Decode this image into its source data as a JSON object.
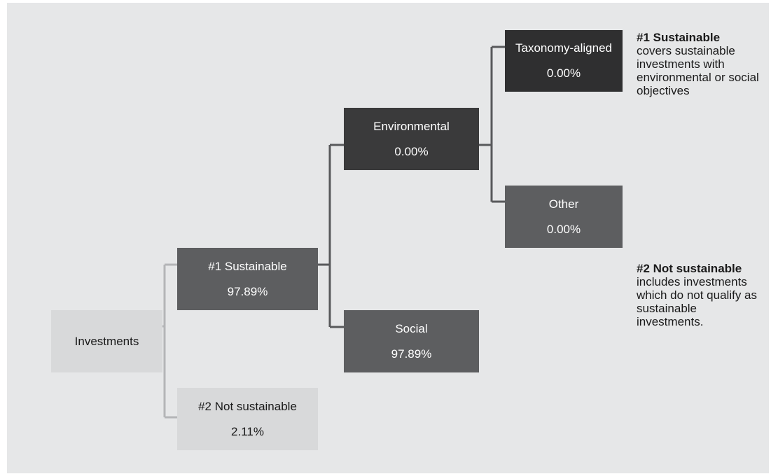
{
  "colors": {
    "panel_background": "#e6e7e8",
    "box_dark": "#3a3a3b",
    "box_medium": "#5d5e60",
    "box_light": "#d8d9da",
    "connector_light": "#b4b5b7",
    "connector_dark": "#58595b"
  },
  "nodes": {
    "investments": {
      "label": "Investments"
    },
    "sustainable": {
      "label": "#1 Sustainable",
      "value": "97.89%"
    },
    "not_sustainable": {
      "label": "#2 Not sustainable",
      "value": "2.11%"
    },
    "environmental": {
      "label": "Environmental",
      "value": "0.00%"
    },
    "social": {
      "label": "Social",
      "value": "97.89%"
    },
    "taxonomy_aligned": {
      "label": "Taxonomy-aligned",
      "value": "0.00%"
    },
    "other": {
      "label": "Other",
      "value": "0.00%"
    }
  },
  "legend": [
    {
      "title": "#1 Sustainable",
      "text": "covers sustainable investments with environmental or social objectives"
    },
    {
      "title": "#2 Not sustainable",
      "text": "includes investments which do not qualify as sustainable investments."
    }
  ]
}
